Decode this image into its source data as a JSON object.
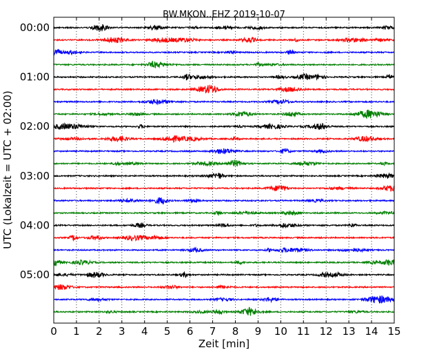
{
  "chart_data": {
    "type": "line",
    "title": "BW.MKON..EHZ 2019-10-07",
    "xlabel": "Zeit  [min]",
    "ylabel": "UTC (Lokalzeit = UTC + 02:00)",
    "xlim": [
      0,
      15
    ],
    "x_ticks": [
      "0",
      "1",
      "2",
      "3",
      "4",
      "5",
      "6",
      "7",
      "8",
      "9",
      "10",
      "11",
      "12",
      "13",
      "14",
      "15"
    ],
    "y_ticks": [
      "00:00",
      "01:00",
      "02:00",
      "03:00",
      "04:00",
      "05:00"
    ],
    "grid": {
      "x": true,
      "y": false,
      "style": "dotted"
    },
    "trace_colors": [
      "#000000",
      "#ff0000",
      "#0000ff",
      "#008000"
    ],
    "trace_interval_minutes": 15,
    "trace_count": 24,
    "trace_start_utc": "00:00"
  }
}
